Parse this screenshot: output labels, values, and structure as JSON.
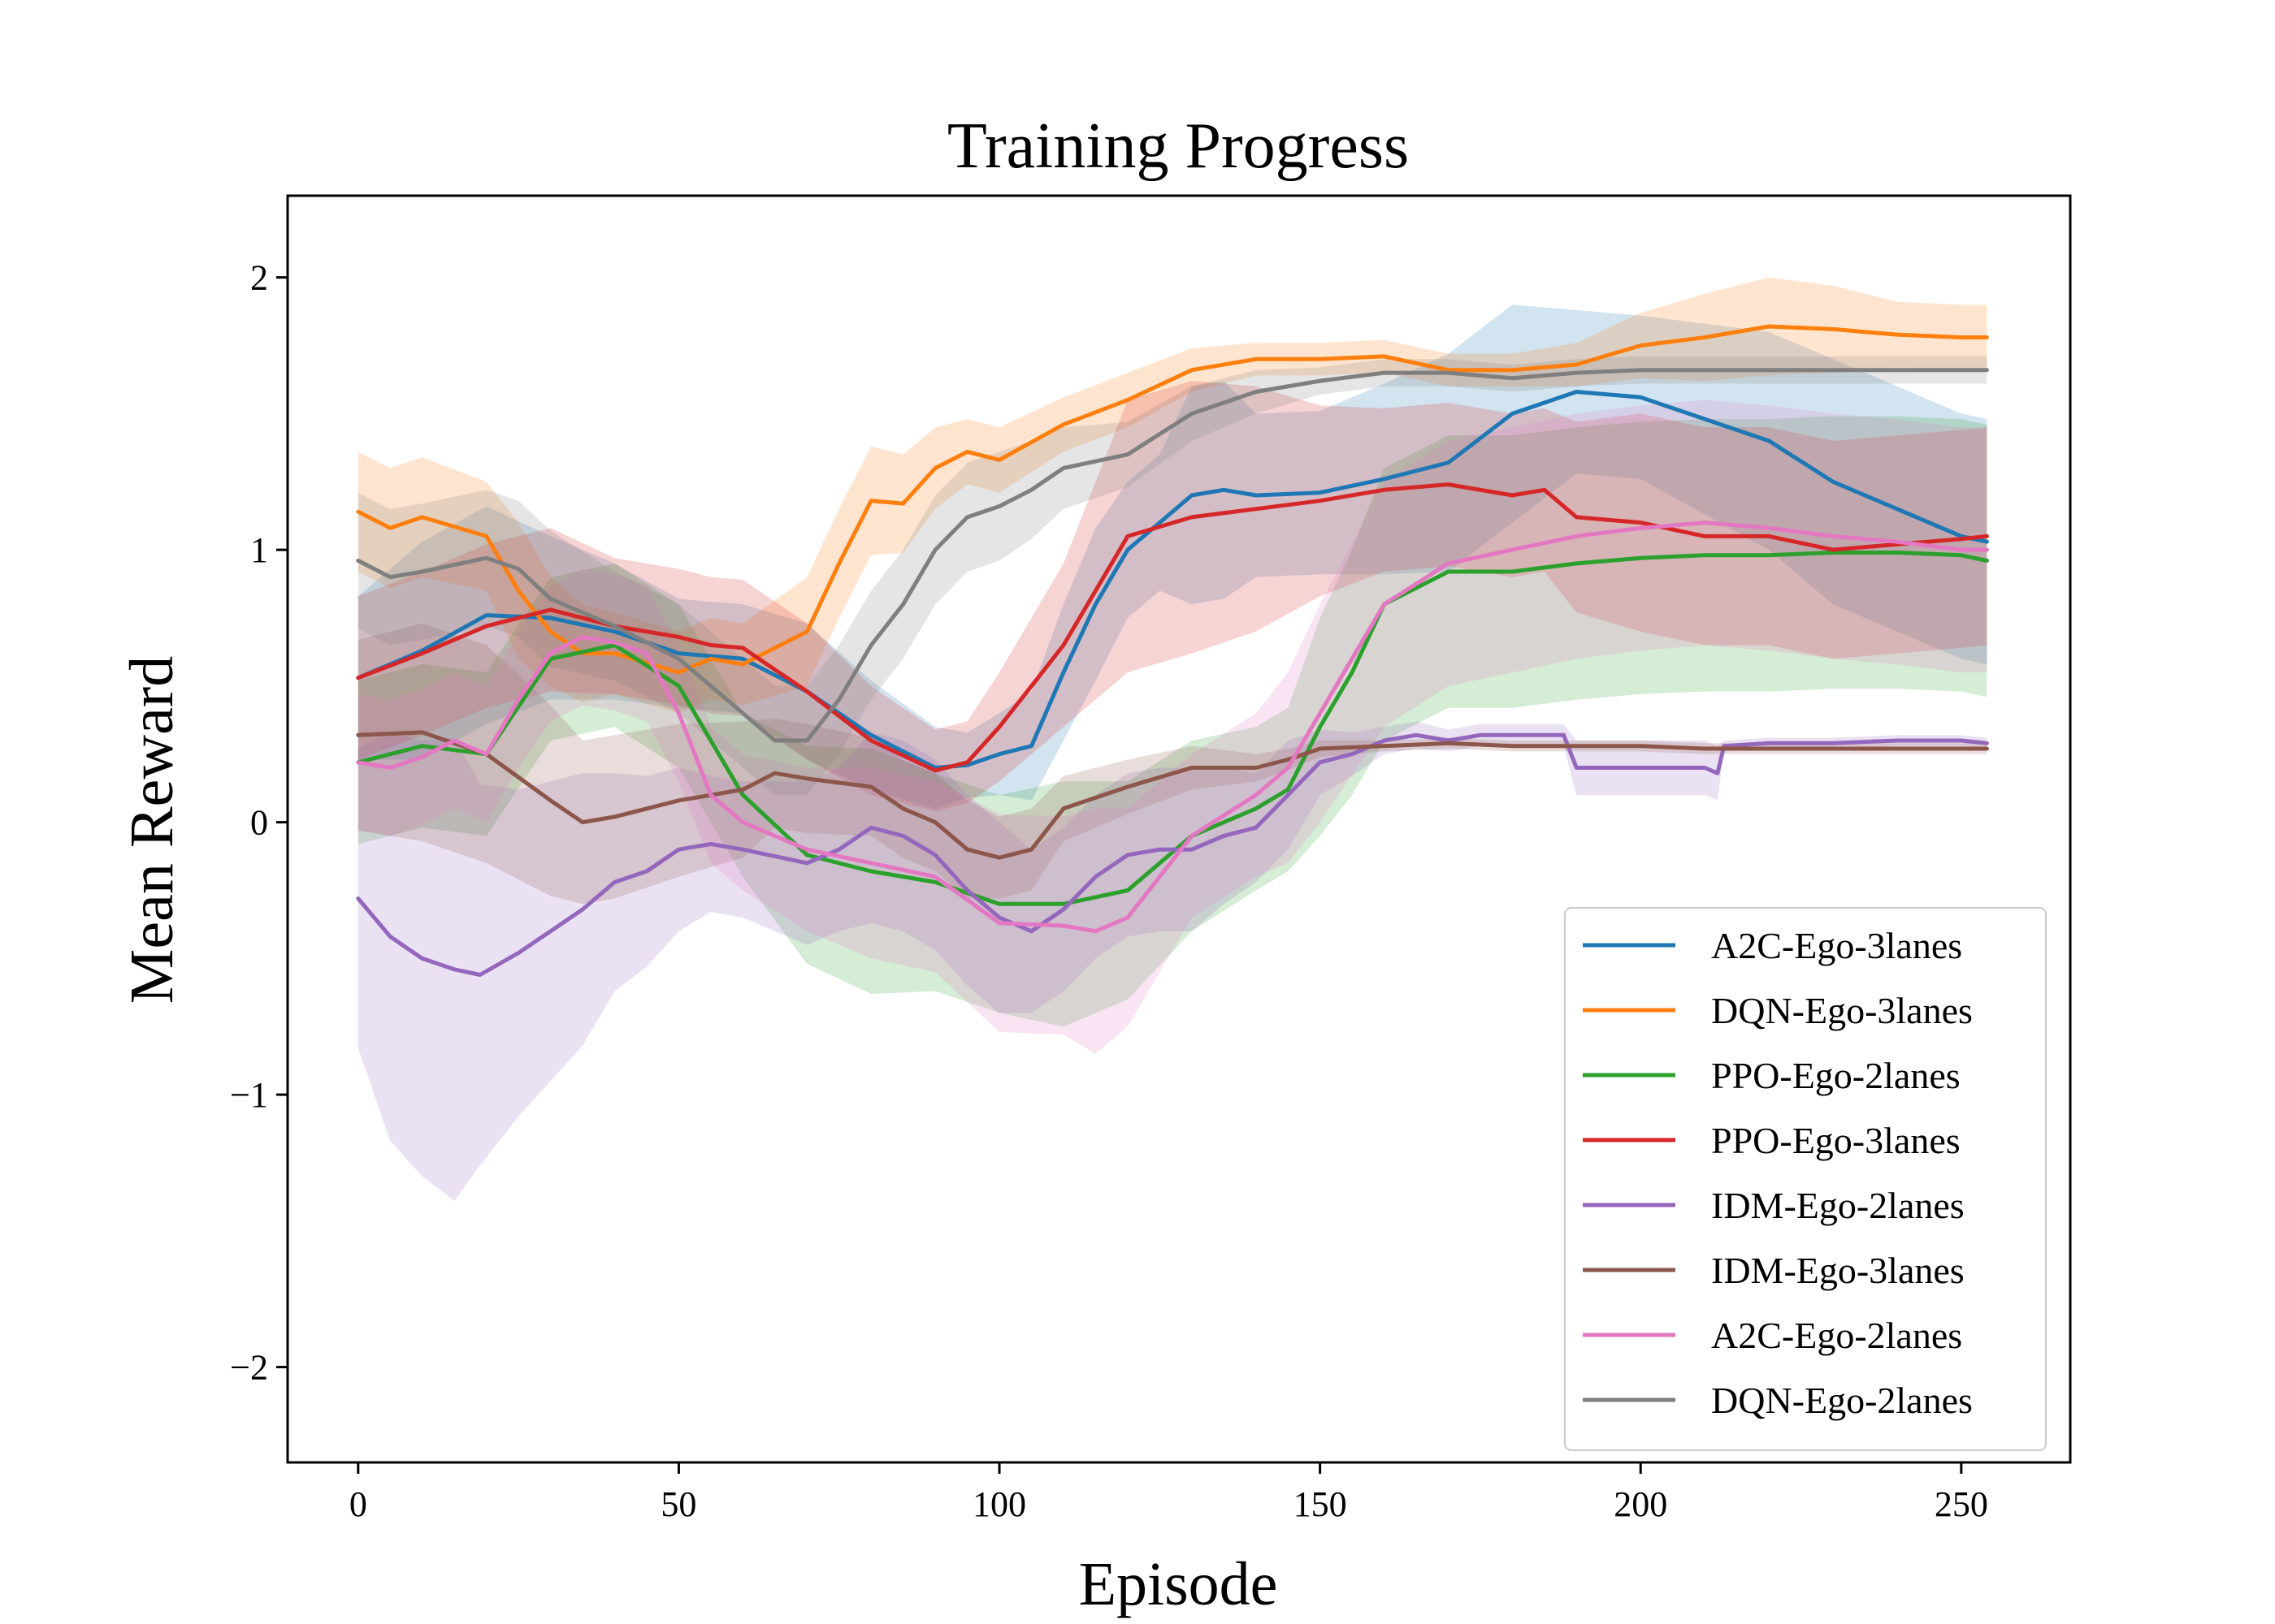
{
  "chart_data": {
    "type": "line",
    "title": "Training Progress",
    "xlabel": "Episode",
    "ylabel": "Mean Reward",
    "xlim": [
      -11,
      267
    ],
    "ylim": [
      -2.35,
      2.3
    ],
    "xticks": [
      0,
      50,
      100,
      150,
      200,
      250
    ],
    "yticks": [
      -2,
      -1,
      0,
      1,
      2
    ],
    "xtick_labels": [
      "0",
      "50",
      "100",
      "150",
      "200",
      "250"
    ],
    "ytick_labels": [
      "−2",
      "−1",
      "0",
      "1",
      "2"
    ],
    "grid": false,
    "legend_position": "lower-right",
    "series": [
      {
        "name": "A2C-Ego-3lanes",
        "color": "#1f77b4",
        "x": [
          0,
          10,
          20,
          30,
          40,
          50,
          60,
          70,
          80,
          90,
          95,
          100,
          105,
          110,
          115,
          120,
          125,
          130,
          135,
          140,
          150,
          160,
          170,
          180,
          190,
          200,
          210,
          220,
          230,
          240,
          250,
          254
        ],
        "y": [
          0.53,
          0.63,
          0.76,
          0.75,
          0.7,
          0.62,
          0.6,
          0.48,
          0.32,
          0.2,
          0.21,
          0.25,
          0.28,
          0.55,
          0.8,
          1.0,
          1.1,
          1.2,
          1.22,
          1.2,
          1.21,
          1.26,
          1.32,
          1.5,
          1.58,
          1.56,
          1.48,
          1.4,
          1.25,
          1.15,
          1.05,
          1.03
        ],
        "band": [
          0.3,
          0.4,
          0.4,
          0.3,
          0.25,
          0.2,
          0.2,
          0.25,
          0.2,
          0.15,
          0.12,
          0.15,
          0.2,
          0.25,
          0.28,
          0.25,
          0.25,
          0.4,
          0.4,
          0.3,
          0.3,
          0.35,
          0.4,
          0.4,
          0.3,
          0.3,
          0.35,
          0.4,
          0.45,
          0.45,
          0.45,
          0.45
        ]
      },
      {
        "name": "DQN-Ego-3lanes",
        "color": "#ff7f0e",
        "x": [
          0,
          5,
          10,
          20,
          25,
          30,
          35,
          40,
          50,
          55,
          60,
          70,
          75,
          80,
          85,
          90,
          95,
          100,
          110,
          120,
          130,
          140,
          150,
          160,
          170,
          180,
          190,
          200,
          210,
          220,
          230,
          240,
          250,
          254
        ],
        "y": [
          1.14,
          1.08,
          1.12,
          1.05,
          0.85,
          0.7,
          0.62,
          0.62,
          0.55,
          0.6,
          0.58,
          0.7,
          0.95,
          1.18,
          1.17,
          1.3,
          1.36,
          1.33,
          1.46,
          1.55,
          1.66,
          1.7,
          1.7,
          1.71,
          1.66,
          1.66,
          1.68,
          1.75,
          1.78,
          1.82,
          1.81,
          1.79,
          1.78,
          1.78
        ],
        "band": [
          0.22,
          0.22,
          0.22,
          0.2,
          0.25,
          0.2,
          0.18,
          0.15,
          0.15,
          0.15,
          0.15,
          0.2,
          0.2,
          0.2,
          0.18,
          0.15,
          0.12,
          0.12,
          0.1,
          0.1,
          0.08,
          0.06,
          0.06,
          0.06,
          0.06,
          0.06,
          0.08,
          0.12,
          0.16,
          0.18,
          0.16,
          0.12,
          0.12,
          0.12
        ]
      },
      {
        "name": "PPO-Ego-2lanes",
        "color": "#2ca02c",
        "x": [
          0,
          10,
          20,
          30,
          40,
          50,
          60,
          70,
          80,
          90,
          100,
          110,
          120,
          130,
          140,
          145,
          150,
          155,
          160,
          170,
          180,
          190,
          200,
          210,
          220,
          230,
          240,
          250,
          254
        ],
        "y": [
          0.22,
          0.28,
          0.25,
          0.6,
          0.65,
          0.5,
          0.1,
          -0.12,
          -0.18,
          -0.22,
          -0.3,
          -0.3,
          -0.25,
          -0.05,
          0.05,
          0.12,
          0.35,
          0.55,
          0.8,
          0.92,
          0.92,
          0.95,
          0.97,
          0.98,
          0.98,
          0.99,
          0.99,
          0.98,
          0.96
        ],
        "band": [
          0.3,
          0.3,
          0.3,
          0.3,
          0.3,
          0.3,
          0.3,
          0.4,
          0.45,
          0.4,
          0.4,
          0.45,
          0.4,
          0.35,
          0.3,
          0.3,
          0.4,
          0.45,
          0.5,
          0.5,
          0.5,
          0.5,
          0.5,
          0.5,
          0.5,
          0.5,
          0.5,
          0.5,
          0.5
        ]
      },
      {
        "name": "PPO-Ego-3lanes",
        "color": "#d62728",
        "x": [
          0,
          10,
          20,
          30,
          40,
          50,
          55,
          60,
          70,
          80,
          90,
          95,
          100,
          105,
          110,
          115,
          120,
          130,
          140,
          150,
          160,
          170,
          180,
          185,
          190,
          200,
          210,
          220,
          230,
          240,
          250,
          254
        ],
        "y": [
          0.53,
          0.62,
          0.72,
          0.78,
          0.72,
          0.68,
          0.65,
          0.64,
          0.48,
          0.3,
          0.19,
          0.22,
          0.35,
          0.5,
          0.65,
          0.85,
          1.05,
          1.12,
          1.15,
          1.18,
          1.22,
          1.24,
          1.2,
          1.22,
          1.12,
          1.1,
          1.05,
          1.05,
          1.0,
          1.02,
          1.04,
          1.05
        ],
        "band": [
          0.3,
          0.3,
          0.3,
          0.3,
          0.25,
          0.25,
          0.25,
          0.25,
          0.25,
          0.2,
          0.15,
          0.15,
          0.2,
          0.25,
          0.3,
          0.4,
          0.5,
          0.5,
          0.45,
          0.35,
          0.3,
          0.3,
          0.3,
          0.3,
          0.35,
          0.4,
          0.4,
          0.4,
          0.4,
          0.4,
          0.4,
          0.4
        ]
      },
      {
        "name": "IDM-Ego-2lanes",
        "color": "#9467bd",
        "x": [
          0,
          5,
          10,
          15,
          19,
          25,
          30,
          35,
          40,
          45,
          50,
          55,
          60,
          70,
          75,
          80,
          85,
          90,
          95,
          100,
          105,
          110,
          115,
          120,
          125,
          130,
          135,
          140,
          145,
          150,
          155,
          160,
          165,
          170,
          175,
          180,
          185,
          188,
          190,
          200,
          210,
          212,
          213,
          220,
          230,
          240,
          250,
          254
        ],
        "y": [
          -0.28,
          -0.42,
          -0.5,
          -0.54,
          -0.56,
          -0.48,
          -0.4,
          -0.32,
          -0.22,
          -0.18,
          -0.1,
          -0.08,
          -0.1,
          -0.15,
          -0.1,
          -0.02,
          -0.05,
          -0.12,
          -0.25,
          -0.35,
          -0.4,
          -0.32,
          -0.2,
          -0.12,
          -0.1,
          -0.1,
          -0.05,
          -0.02,
          0.1,
          0.22,
          0.25,
          0.3,
          0.32,
          0.3,
          0.32,
          0.32,
          0.32,
          0.32,
          0.2,
          0.2,
          0.2,
          0.18,
          0.28,
          0.29,
          0.29,
          0.3,
          0.3,
          0.29
        ],
        "band": [
          0.55,
          0.75,
          0.8,
          0.85,
          0.7,
          0.6,
          0.55,
          0.5,
          0.4,
          0.35,
          0.3,
          0.25,
          0.25,
          0.3,
          0.3,
          0.35,
          0.35,
          0.35,
          0.35,
          0.35,
          0.3,
          0.3,
          0.3,
          0.3,
          0.3,
          0.3,
          0.25,
          0.2,
          0.2,
          0.12,
          0.08,
          0.05,
          0.05,
          0.04,
          0.04,
          0.04,
          0.04,
          0.04,
          0.1,
          0.1,
          0.1,
          0.1,
          0.02,
          0.02,
          0.02,
          0.02,
          0.02,
          0.02
        ]
      },
      {
        "name": "IDM-Ego-3lanes",
        "color": "#8c564b",
        "x": [
          0,
          10,
          20,
          30,
          35,
          40,
          50,
          60,
          65,
          70,
          80,
          85,
          90,
          95,
          100,
          105,
          110,
          120,
          130,
          140,
          145,
          150,
          160,
          170,
          180,
          190,
          200,
          210,
          220,
          230,
          240,
          250,
          254
        ],
        "y": [
          0.32,
          0.33,
          0.25,
          0.08,
          0.0,
          0.02,
          0.08,
          0.12,
          0.18,
          0.16,
          0.13,
          0.05,
          0.0,
          -0.1,
          -0.13,
          -0.1,
          0.05,
          0.13,
          0.2,
          0.2,
          0.23,
          0.27,
          0.28,
          0.29,
          0.28,
          0.28,
          0.28,
          0.27,
          0.27,
          0.27,
          0.27,
          0.27,
          0.27
        ],
        "band": [
          0.35,
          0.4,
          0.4,
          0.35,
          0.3,
          0.3,
          0.28,
          0.25,
          0.2,
          0.2,
          0.18,
          0.18,
          0.18,
          0.18,
          0.15,
          0.15,
          0.12,
          0.1,
          0.08,
          0.05,
          0.04,
          0.03,
          0.02,
          0.02,
          0.02,
          0.02,
          0.02,
          0.02,
          0.02,
          0.02,
          0.02,
          0.02,
          0.02
        ]
      },
      {
        "name": "A2C-Ego-2lanes",
        "color": "#e377c2",
        "x": [
          0,
          5,
          10,
          15,
          20,
          25,
          30,
          35,
          40,
          45,
          50,
          55,
          60,
          70,
          80,
          90,
          100,
          110,
          115,
          120,
          125,
          130,
          140,
          145,
          150,
          160,
          170,
          180,
          190,
          200,
          210,
          220,
          230,
          240,
          250,
          254
        ],
        "y": [
          0.22,
          0.2,
          0.24,
          0.3,
          0.25,
          0.45,
          0.62,
          0.68,
          0.66,
          0.62,
          0.4,
          0.1,
          0.0,
          -0.1,
          -0.15,
          -0.2,
          -0.37,
          -0.38,
          -0.4,
          -0.35,
          -0.2,
          -0.05,
          0.1,
          0.2,
          0.4,
          0.8,
          0.95,
          1.0,
          1.05,
          1.08,
          1.1,
          1.08,
          1.05,
          1.03,
          1.0,
          1.0
        ],
        "band": [
          0.25,
          0.25,
          0.25,
          0.25,
          0.25,
          0.25,
          0.25,
          0.25,
          0.25,
          0.25,
          0.25,
          0.25,
          0.25,
          0.3,
          0.35,
          0.35,
          0.4,
          0.4,
          0.45,
          0.4,
          0.35,
          0.3,
          0.3,
          0.35,
          0.4,
          0.45,
          0.45,
          0.45,
          0.45,
          0.45,
          0.45,
          0.45,
          0.45,
          0.45,
          0.45,
          0.45
        ]
      },
      {
        "name": "DQN-Ego-2lanes",
        "color": "#7f7f7f",
        "x": [
          0,
          5,
          10,
          20,
          25,
          30,
          40,
          50,
          55,
          60,
          65,
          70,
          75,
          80,
          85,
          90,
          95,
          100,
          105,
          110,
          120,
          130,
          140,
          150,
          160,
          170,
          180,
          190,
          200,
          210,
          220,
          230,
          240,
          250,
          254
        ],
        "y": [
          0.96,
          0.9,
          0.92,
          0.97,
          0.93,
          0.82,
          0.72,
          0.6,
          0.5,
          0.4,
          0.3,
          0.3,
          0.45,
          0.65,
          0.8,
          1.0,
          1.12,
          1.16,
          1.22,
          1.3,
          1.35,
          1.5,
          1.58,
          1.62,
          1.65,
          1.65,
          1.63,
          1.65,
          1.66,
          1.66,
          1.66,
          1.66,
          1.66,
          1.66,
          1.66
        ],
        "band": [
          0.25,
          0.25,
          0.25,
          0.25,
          0.25,
          0.25,
          0.2,
          0.2,
          0.2,
          0.2,
          0.2,
          0.2,
          0.2,
          0.2,
          0.2,
          0.2,
          0.2,
          0.2,
          0.18,
          0.15,
          0.12,
          0.1,
          0.08,
          0.05,
          0.05,
          0.05,
          0.05,
          0.05,
          0.05,
          0.05,
          0.05,
          0.05,
          0.05,
          0.05,
          0.05
        ]
      }
    ]
  }
}
